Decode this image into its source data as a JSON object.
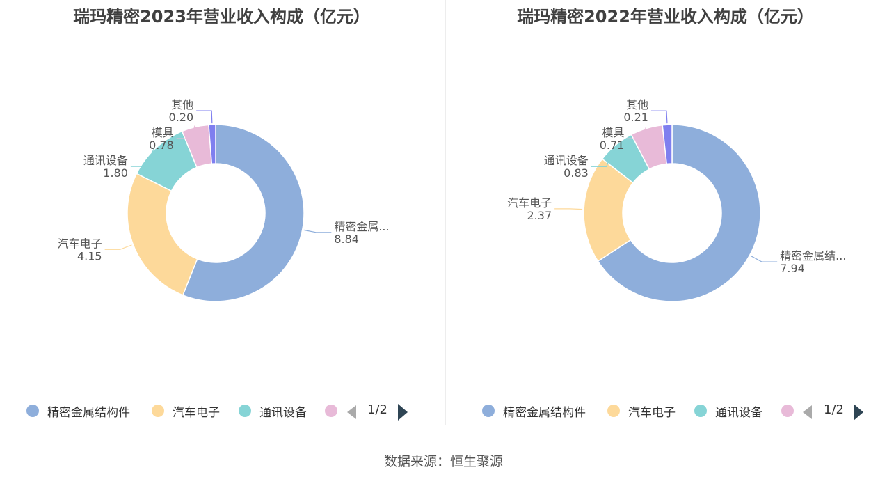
{
  "source": "数据来源：恒生聚源",
  "chart_data": [
    {
      "type": "pie",
      "title": "瑞玛精密2023年营业收入构成（亿元）",
      "categories": [
        "精密金属结构件",
        "汽车电子",
        "通讯设备",
        "模具",
        "其他"
      ],
      "values": [
        8.84,
        4.15,
        1.8,
        0.78,
        0.2
      ],
      "slice_labels": [
        "精密金属...",
        "汽车电子",
        "通讯设备",
        "模具",
        "其他"
      ],
      "value_labels": [
        "8.84",
        "4.15",
        "1.80",
        "0.78",
        "0.20"
      ],
      "legend": {
        "position": "bottom",
        "visible_entries": [
          "精密金属结构件",
          "汽车电子",
          "通讯设备"
        ],
        "page": "1/2"
      }
    },
    {
      "type": "pie",
      "title": "瑞玛精密2022年营业收入构成（亿元）",
      "categories": [
        "精密金属结构件",
        "汽车电子",
        "通讯设备",
        "模具",
        "其他"
      ],
      "values": [
        7.94,
        2.37,
        0.83,
        0.71,
        0.21
      ],
      "slice_labels": [
        "精密金属结...",
        "汽车电子",
        "通讯设备",
        "模具",
        "其他"
      ],
      "value_labels": [
        "7.94",
        "2.37",
        "0.83",
        "0.71",
        "0.21"
      ],
      "legend": {
        "position": "bottom",
        "visible_entries": [
          "精密金属结构件",
          "汽车电子",
          "通讯设备"
        ],
        "page": "1/2"
      }
    }
  ],
  "colors": [
    "#8eaedb",
    "#fdd99a",
    "#86d4d6",
    "#e8bad8",
    "#7f7fef"
  ]
}
